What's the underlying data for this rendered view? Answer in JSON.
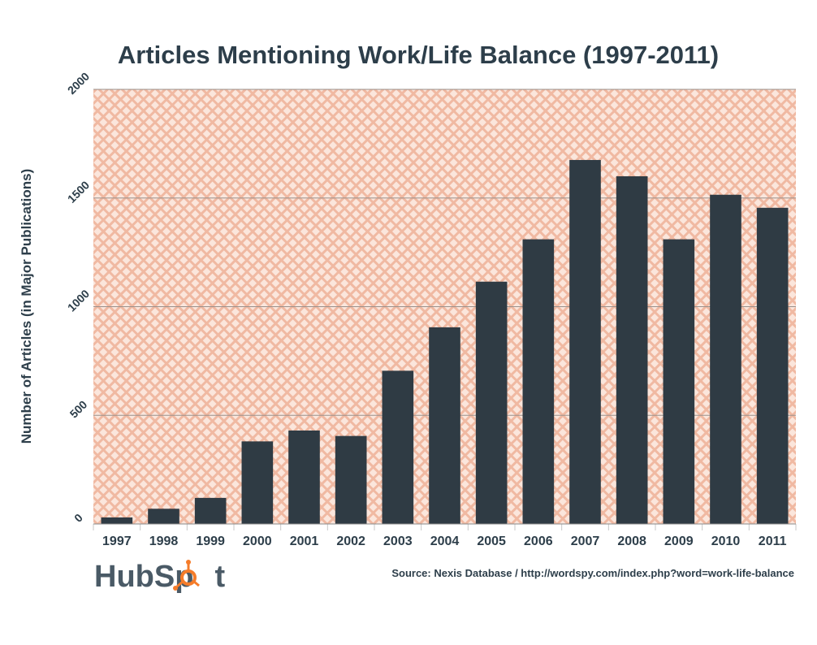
{
  "chart_data": {
    "type": "bar",
    "title": "Articles Mentioning Work/Life Balance (1997-2011)",
    "ylabel": "Number of Articles  (in Major Publications)",
    "xlabel": "",
    "categories": [
      "1997",
      "1998",
      "1999",
      "2000",
      "2001",
      "2002",
      "2003",
      "2004",
      "2005",
      "2006",
      "2007",
      "2008",
      "2009",
      "2010",
      "2011"
    ],
    "values": [
      30,
      70,
      120,
      380,
      430,
      405,
      705,
      905,
      1115,
      1310,
      1675,
      1600,
      1310,
      1515,
      1455
    ],
    "ylim": [
      0,
      2000
    ],
    "yticks": [
      "0",
      "500",
      "1000",
      "1500",
      "2000"
    ],
    "grid": true,
    "legend": "none",
    "bar_color": "#2f3b44",
    "background_pattern_color": "#f0b9a2",
    "source": "Source: Nexis Database / http://wordspy.com/index.php?word=work-life-balance"
  },
  "branding": {
    "logo_text_left": "HubSp",
    "logo_text_right": "t",
    "logo_accent": "#f57c2a"
  }
}
